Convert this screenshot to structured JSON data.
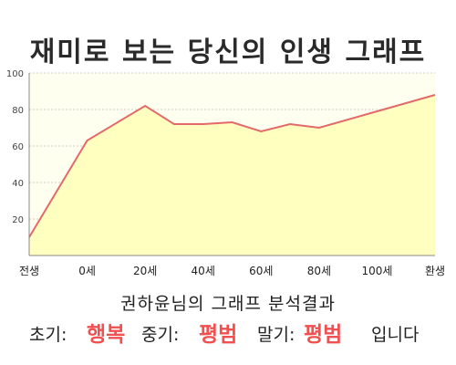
{
  "chart_data": {
    "type": "area",
    "title": "재미로 보는 당신의 인생 그래프",
    "x_ticks": [
      "전생",
      "0세",
      "20세",
      "40세",
      "60세",
      "80세",
      "100세",
      "환생"
    ],
    "x": [
      -20,
      0,
      20,
      30,
      40,
      50,
      60,
      70,
      80,
      100,
      120
    ],
    "values": [
      10,
      63,
      82,
      72,
      72,
      73,
      68,
      72,
      70,
      79,
      88
    ],
    "y_ticks": [
      20,
      40,
      60,
      80,
      100
    ],
    "ylim": [
      0,
      100
    ],
    "grid": true,
    "colors": {
      "line": "#e26a6a",
      "fill": "#ffffc0",
      "grid": "#cccccc",
      "axis": "#888888"
    }
  },
  "summary": {
    "line1": "권하윤님의 그래프 분석결과",
    "early_label": "초기:",
    "early_value": "행복",
    "mid_label": "중기:",
    "mid_value": "평범",
    "late_label": "말기:",
    "late_value": "평범",
    "ending": "입니다"
  }
}
